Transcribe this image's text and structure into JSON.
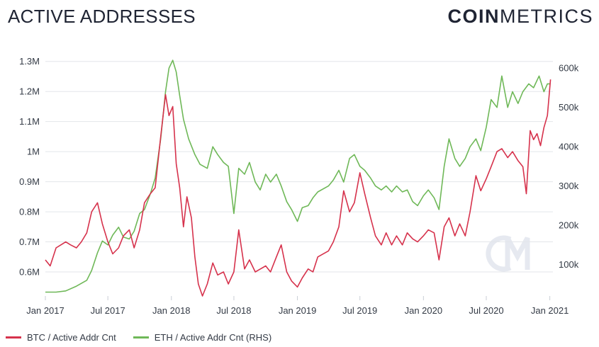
{
  "title": "ACTIVE ADDRESSES",
  "logo": {
    "bold": "COIN",
    "light": "METRICS"
  },
  "colors": {
    "btc": "#d6324c",
    "eth": "#6fb858",
    "watermark": "#e6e9f0"
  },
  "chart_data": {
    "type": "line",
    "x_ticks": [
      "Jan 2017",
      "Jul 2017",
      "Jan 2018",
      "Jul 2018",
      "Jan 2019",
      "Jul 2019",
      "Jan 2020",
      "Jul 2020",
      "Jan 2021"
    ],
    "y_left_ticks": [
      "0.6M",
      "0.7M",
      "0.8M",
      "0.9M",
      "1M",
      "1.1M",
      "1.2M",
      "1.3M"
    ],
    "y_right_ticks": [
      "100k",
      "200k",
      "300k",
      "400k",
      "500k",
      "600k"
    ],
    "ylim_left": [
      0.52,
      1.33
    ],
    "ylim_right": [
      20000,
      640000
    ],
    "xlim": [
      "2017-01-01",
      "2021-01-10"
    ],
    "grid": true,
    "legend_position": "bottom-left",
    "series": [
      {
        "name": "BTC / Active Addr Cnt",
        "axis": "left",
        "points": [
          [
            "2017-01-01",
            0.64
          ],
          [
            "2017-01-15",
            0.62
          ],
          [
            "2017-02-01",
            0.68
          ],
          [
            "2017-02-15",
            0.69
          ],
          [
            "2017-03-01",
            0.7
          ],
          [
            "2017-03-15",
            0.69
          ],
          [
            "2017-04-01",
            0.68
          ],
          [
            "2017-04-15",
            0.7
          ],
          [
            "2017-05-01",
            0.73
          ],
          [
            "2017-05-15",
            0.8
          ],
          [
            "2017-06-01",
            0.83
          ],
          [
            "2017-06-15",
            0.76
          ],
          [
            "2017-07-01",
            0.7
          ],
          [
            "2017-07-15",
            0.66
          ],
          [
            "2017-08-01",
            0.68
          ],
          [
            "2017-08-15",
            0.72
          ],
          [
            "2017-09-01",
            0.74
          ],
          [
            "2017-09-15",
            0.68
          ],
          [
            "2017-10-01",
            0.74
          ],
          [
            "2017-10-15",
            0.83
          ],
          [
            "2017-11-01",
            0.86
          ],
          [
            "2017-11-15",
            0.88
          ],
          [
            "2017-12-01",
            1.05
          ],
          [
            "2017-12-15",
            1.19
          ],
          [
            "2017-12-25",
            1.12
          ],
          [
            "2018-01-05",
            1.15
          ],
          [
            "2018-01-15",
            0.96
          ],
          [
            "2018-01-25",
            0.88
          ],
          [
            "2018-02-05",
            0.75
          ],
          [
            "2018-02-15",
            0.85
          ],
          [
            "2018-02-28",
            0.78
          ],
          [
            "2018-03-10",
            0.65
          ],
          [
            "2018-03-20",
            0.56
          ],
          [
            "2018-04-01",
            0.52
          ],
          [
            "2018-04-15",
            0.56
          ],
          [
            "2018-05-01",
            0.63
          ],
          [
            "2018-05-15",
            0.59
          ],
          [
            "2018-06-01",
            0.6
          ],
          [
            "2018-06-15",
            0.56
          ],
          [
            "2018-07-01",
            0.6
          ],
          [
            "2018-07-15",
            0.74
          ],
          [
            "2018-08-01",
            0.61
          ],
          [
            "2018-08-15",
            0.64
          ],
          [
            "2018-09-01",
            0.6
          ],
          [
            "2018-10-01",
            0.62
          ],
          [
            "2018-10-15",
            0.6
          ],
          [
            "2018-11-01",
            0.65
          ],
          [
            "2018-11-15",
            0.69
          ],
          [
            "2018-12-01",
            0.6
          ],
          [
            "2018-12-15",
            0.57
          ],
          [
            "2019-01-01",
            0.55
          ],
          [
            "2019-01-15",
            0.58
          ],
          [
            "2019-02-01",
            0.61
          ],
          [
            "2019-02-15",
            0.6
          ],
          [
            "2019-03-01",
            0.65
          ],
          [
            "2019-04-01",
            0.67
          ],
          [
            "2019-04-15",
            0.7
          ],
          [
            "2019-05-01",
            0.75
          ],
          [
            "2019-05-15",
            0.87
          ],
          [
            "2019-06-01",
            0.8
          ],
          [
            "2019-06-15",
            0.83
          ],
          [
            "2019-07-01",
            0.93
          ],
          [
            "2019-07-15",
            0.86
          ],
          [
            "2019-08-01",
            0.78
          ],
          [
            "2019-08-15",
            0.72
          ],
          [
            "2019-09-01",
            0.69
          ],
          [
            "2019-09-15",
            0.73
          ],
          [
            "2019-10-01",
            0.69
          ],
          [
            "2019-10-15",
            0.72
          ],
          [
            "2019-11-01",
            0.69
          ],
          [
            "2019-11-15",
            0.73
          ],
          [
            "2019-12-01",
            0.71
          ],
          [
            "2019-12-15",
            0.7
          ],
          [
            "2020-01-01",
            0.72
          ],
          [
            "2020-01-15",
            0.74
          ],
          [
            "2020-02-01",
            0.73
          ],
          [
            "2020-02-15",
            0.64
          ],
          [
            "2020-03-01",
            0.75
          ],
          [
            "2020-03-15",
            0.78
          ],
          [
            "2020-04-01",
            0.72
          ],
          [
            "2020-04-15",
            0.76
          ],
          [
            "2020-05-01",
            0.72
          ],
          [
            "2020-05-15",
            0.8
          ],
          [
            "2020-06-01",
            0.92
          ],
          [
            "2020-06-15",
            0.87
          ],
          [
            "2020-07-01",
            0.91
          ],
          [
            "2020-07-15",
            0.95
          ],
          [
            "2020-08-01",
            1.0
          ],
          [
            "2020-08-15",
            1.01
          ],
          [
            "2020-09-01",
            0.98
          ],
          [
            "2020-09-15",
            1.0
          ],
          [
            "2020-10-01",
            0.97
          ],
          [
            "2020-10-15",
            0.95
          ],
          [
            "2020-10-25",
            0.86
          ],
          [
            "2020-11-05",
            1.07
          ],
          [
            "2020-11-15",
            1.04
          ],
          [
            "2020-11-25",
            1.06
          ],
          [
            "2020-12-05",
            1.02
          ],
          [
            "2020-12-15",
            1.08
          ],
          [
            "2020-12-25",
            1.12
          ],
          [
            "2021-01-03",
            1.24
          ]
        ]
      },
      {
        "name": "ETH / Active Addr Cnt (RHS)",
        "axis": "right",
        "points": [
          [
            "2017-01-01",
            30000
          ],
          [
            "2017-02-01",
            30000
          ],
          [
            "2017-03-01",
            33000
          ],
          [
            "2017-04-01",
            45000
          ],
          [
            "2017-05-01",
            60000
          ],
          [
            "2017-05-15",
            85000
          ],
          [
            "2017-06-01",
            130000
          ],
          [
            "2017-06-15",
            160000
          ],
          [
            "2017-07-01",
            150000
          ],
          [
            "2017-07-15",
            175000
          ],
          [
            "2017-08-01",
            195000
          ],
          [
            "2017-08-15",
            170000
          ],
          [
            "2017-09-01",
            165000
          ],
          [
            "2017-09-15",
            185000
          ],
          [
            "2017-10-01",
            230000
          ],
          [
            "2017-10-15",
            240000
          ],
          [
            "2017-11-01",
            280000
          ],
          [
            "2017-11-15",
            320000
          ],
          [
            "2017-12-01",
            420000
          ],
          [
            "2017-12-15",
            540000
          ],
          [
            "2017-12-25",
            600000
          ],
          [
            "2018-01-05",
            620000
          ],
          [
            "2018-01-15",
            590000
          ],
          [
            "2018-01-25",
            530000
          ],
          [
            "2018-02-05",
            470000
          ],
          [
            "2018-02-20",
            420000
          ],
          [
            "2018-03-10",
            380000
          ],
          [
            "2018-03-25",
            355000
          ],
          [
            "2018-04-15",
            345000
          ],
          [
            "2018-05-01",
            400000
          ],
          [
            "2018-05-15",
            380000
          ],
          [
            "2018-06-01",
            360000
          ],
          [
            "2018-06-15",
            350000
          ],
          [
            "2018-07-01",
            230000
          ],
          [
            "2018-07-15",
            345000
          ],
          [
            "2018-08-01",
            330000
          ],
          [
            "2018-08-15",
            360000
          ],
          [
            "2018-09-01",
            310000
          ],
          [
            "2018-09-15",
            290000
          ],
          [
            "2018-10-01",
            330000
          ],
          [
            "2018-10-15",
            310000
          ],
          [
            "2018-11-01",
            330000
          ],
          [
            "2018-11-15",
            300000
          ],
          [
            "2018-12-01",
            260000
          ],
          [
            "2018-12-15",
            240000
          ],
          [
            "2019-01-01",
            210000
          ],
          [
            "2019-01-15",
            245000
          ],
          [
            "2019-02-01",
            250000
          ],
          [
            "2019-02-15",
            270000
          ],
          [
            "2019-03-01",
            285000
          ],
          [
            "2019-04-01",
            300000
          ],
          [
            "2019-04-15",
            315000
          ],
          [
            "2019-05-01",
            340000
          ],
          [
            "2019-05-15",
            310000
          ],
          [
            "2019-06-01",
            370000
          ],
          [
            "2019-06-15",
            380000
          ],
          [
            "2019-07-01",
            350000
          ],
          [
            "2019-07-15",
            340000
          ],
          [
            "2019-08-01",
            320000
          ],
          [
            "2019-08-15",
            300000
          ],
          [
            "2019-09-01",
            290000
          ],
          [
            "2019-09-15",
            300000
          ],
          [
            "2019-10-01",
            285000
          ],
          [
            "2019-10-15",
            300000
          ],
          [
            "2019-11-01",
            285000
          ],
          [
            "2019-11-15",
            290000
          ],
          [
            "2019-12-01",
            260000
          ],
          [
            "2019-12-15",
            250000
          ],
          [
            "2020-01-01",
            275000
          ],
          [
            "2020-01-15",
            290000
          ],
          [
            "2020-02-01",
            270000
          ],
          [
            "2020-02-15",
            240000
          ],
          [
            "2020-03-01",
            350000
          ],
          [
            "2020-03-15",
            420000
          ],
          [
            "2020-04-01",
            370000
          ],
          [
            "2020-04-15",
            350000
          ],
          [
            "2020-05-01",
            370000
          ],
          [
            "2020-05-15",
            400000
          ],
          [
            "2020-06-01",
            420000
          ],
          [
            "2020-06-15",
            390000
          ],
          [
            "2020-07-01",
            450000
          ],
          [
            "2020-07-15",
            520000
          ],
          [
            "2020-08-01",
            500000
          ],
          [
            "2020-08-15",
            580000
          ],
          [
            "2020-09-01",
            500000
          ],
          [
            "2020-09-15",
            540000
          ],
          [
            "2020-10-01",
            510000
          ],
          [
            "2020-10-15",
            540000
          ],
          [
            "2020-11-01",
            560000
          ],
          [
            "2020-11-15",
            550000
          ],
          [
            "2020-12-01",
            580000
          ],
          [
            "2020-12-15",
            540000
          ],
          [
            "2020-12-25",
            560000
          ],
          [
            "2021-01-03",
            560000
          ]
        ]
      }
    ]
  }
}
